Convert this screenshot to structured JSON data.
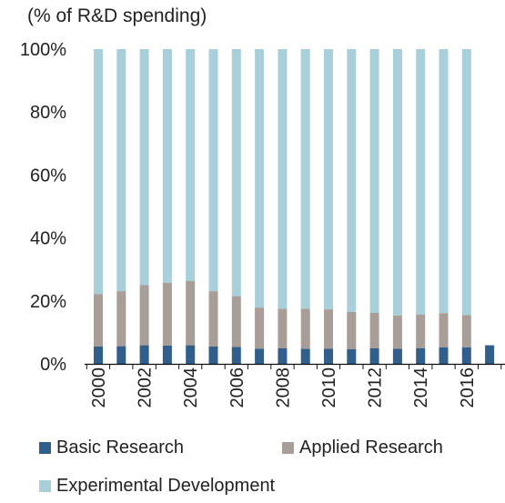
{
  "chart_data": {
    "type": "bar",
    "stacked": true,
    "unit_label": "(% of R&D spending)",
    "ylim": [
      0,
      100
    ],
    "yticks": [
      "0%",
      "20%",
      "40%",
      "60%",
      "80%",
      "100%"
    ],
    "ytick_values": [
      0,
      20,
      40,
      60,
      80,
      100
    ],
    "categories": [
      "2000",
      "2001",
      "2002",
      "2003",
      "2004",
      "2005",
      "2006",
      "2007",
      "2008",
      "2009",
      "2010",
      "2011",
      "2012",
      "2013",
      "2014",
      "2015",
      "2016",
      "2017"
    ],
    "xtick_labels": [
      "2000",
      "2002",
      "2004",
      "2006",
      "2008",
      "2010",
      "2012",
      "2014",
      "2016"
    ],
    "legend_position": "bottom",
    "series": [
      {
        "name": "Basic Research",
        "color": "#2f5f8a",
        "values": [
          5.5,
          5.6,
          5.9,
          5.8,
          5.9,
          5.5,
          5.4,
          4.8,
          4.9,
          4.8,
          4.8,
          4.7,
          4.9,
          4.8,
          4.9,
          5.3,
          5.3,
          5.9
        ]
      },
      {
        "name": "Applied Research",
        "color": "#a89d97",
        "values": [
          16.7,
          17.5,
          19.1,
          20.0,
          20.4,
          17.6,
          16.1,
          13.1,
          12.6,
          12.7,
          12.5,
          11.8,
          11.3,
          10.6,
          10.7,
          10.8,
          10.2,
          0
        ]
      },
      {
        "name": "Experimental Development",
        "color": "#a7d0da",
        "values": [
          77.8,
          76.9,
          75.0,
          74.2,
          73.7,
          76.9,
          78.5,
          82.1,
          82.5,
          82.5,
          82.7,
          83.5,
          83.8,
          84.6,
          84.4,
          83.9,
          84.5,
          0
        ]
      }
    ]
  }
}
